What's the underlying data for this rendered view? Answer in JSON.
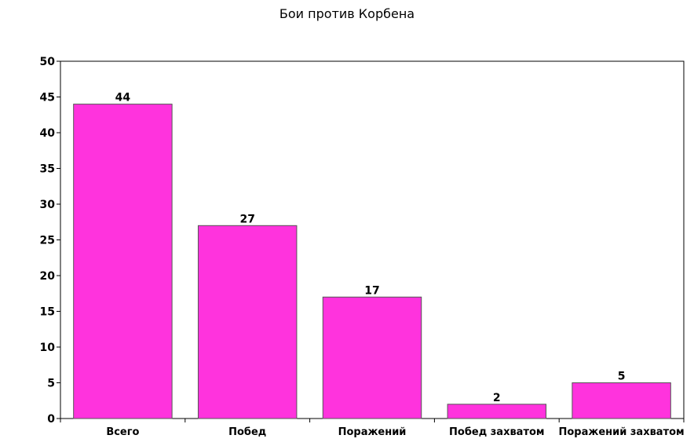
{
  "chart_data": {
    "type": "bar",
    "title": "Бои против Корбена",
    "xlabel": "",
    "ylabel": "",
    "categories": [
      "Всего",
      "Побед",
      "Поражений",
      "Побед захватом",
      "Поражений захватом"
    ],
    "values": [
      44,
      27,
      17,
      2,
      5
    ],
    "ylim": [
      0,
      50
    ],
    "yticks": [
      "0",
      "5",
      "10",
      "15",
      "20",
      "25",
      "30",
      "35",
      "40",
      "45",
      "50"
    ],
    "data_labels": [
      "44",
      "27",
      "17",
      "2",
      "5"
    ],
    "grid": false,
    "legend": "none",
    "colors": {
      "bar": "#ff33dd",
      "bar_edge": "#555555",
      "axis": "#000000"
    }
  }
}
